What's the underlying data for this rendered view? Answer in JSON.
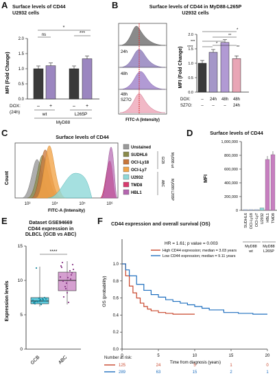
{
  "panels": {
    "A": {
      "letter": "A",
      "title_line1": "Surface levels of CD44",
      "title_line2": "U2932 cells",
      "ylabel": "MFI (Fold Change)",
      "yticks": [
        "0.0",
        "0.5",
        "1.0",
        "1.5",
        "2.0"
      ],
      "sig": [
        "ns",
        "*",
        "***"
      ],
      "dox_label": "DOX:",
      "dox_sub": "(24h)",
      "dox_values": [
        "–",
        "+",
        "–",
        "+"
      ],
      "group_labels": [
        "wt",
        "L265P"
      ],
      "group_super": "MyD88",
      "chart_data": {
        "type": "bar",
        "categories": [
          "wt DOX-",
          "wt DOX+",
          "L265P DOX-",
          "L265P DOX+"
        ],
        "values": [
          1.0,
          1.1,
          1.0,
          1.33
        ],
        "ylim": [
          0,
          2.0
        ],
        "colors": [
          "#3a3a3a",
          "#9b86c0",
          "#3a3a3a",
          "#9b86c0"
        ]
      }
    },
    "B": {
      "letter": "B",
      "title_line1": "Surface levels of CD44 in MyD88-L265P",
      "title_line2": "U2932 cells",
      "hist_labels": [
        "24h",
        "48h",
        "48h",
        "SZ7O"
      ],
      "hist_xlabel": "FITC-A (Intensity)",
      "ylabel": "MFI (Fold Change)",
      "yticks": [
        "0.0",
        "0.5",
        "1.0",
        "1.5",
        "2.0"
      ],
      "sig": [
        "****",
        "***",
        "**",
        "*",
        "*",
        "**"
      ],
      "dox_row_label": "DOX:",
      "sz_row_label": "SZ7O:",
      "dox_values": [
        "–",
        "24h",
        "48h",
        "48h"
      ],
      "sz_values": [
        "–",
        "–",
        "–",
        "24h"
      ],
      "chart_data": {
        "type": "bar",
        "categories": [
          "Ctrl",
          "DOX 24h",
          "DOX 48h",
          "DOX 48h + SZ7O 24h"
        ],
        "values": [
          1.0,
          1.38,
          1.72,
          1.16
        ],
        "ylim": [
          0,
          2.0
        ],
        "colors": [
          "#3a3a3a",
          "#a496c8",
          "#b19ad4",
          "#e9a6b6"
        ]
      }
    },
    "C": {
      "letter": "C",
      "title": "Surface levels of CD44",
      "ylabel": "Count",
      "xlabel": "FITC-A (Intensity)",
      "xticks": [
        "10³",
        "10⁴",
        "10⁵",
        "10⁶"
      ],
      "legend": [
        {
          "label": "Unstained",
          "color": "#9a9a9a"
        },
        {
          "label": "SUDHL6",
          "color": "#8a8a4a"
        },
        {
          "label": "OCI-Ly18",
          "color": "#c8763a"
        },
        {
          "label": "OCI-Ly7",
          "color": "#f2a54a"
        },
        {
          "label": "U2932",
          "color": "#8fd8d8"
        },
        {
          "label": "TMD8",
          "color": "#d83a6e"
        },
        {
          "label": "HBL1",
          "color": "#b565b0"
        }
      ],
      "group_gcb": "GCB",
      "group_abc": "ABC",
      "group_wt": "MyD88 wt",
      "group_mut": "MyD88 L265P"
    },
    "D": {
      "letter": "D",
      "title": "Surface levels of CD44",
      "ylabel": "MFI",
      "yticks": [
        "0",
        "200,000",
        "400,000",
        "600,000",
        "800,000",
        "1,000,000"
      ],
      "group_wt": "MyD88\nwt",
      "group_mut": "MyD88\nL265P",
      "chart_data": {
        "type": "bar",
        "categories": [
          "SUDHL6",
          "OCI-Ly18",
          "OCI-Ly7",
          "U2932",
          "HBL1",
          "TMD8"
        ],
        "values": [
          3000,
          3000,
          4000,
          35000,
          740000,
          810000
        ],
        "ylim": [
          0,
          1000000
        ],
        "colors": [
          "#a8c8ff",
          "#a8c8ff",
          "#a8c8ff",
          "#8fd8d8",
          "#c77fc0",
          "#c77fc0"
        ]
      }
    },
    "E": {
      "letter": "E",
      "title_line1": "Dataset GSE94669",
      "title_line2": "CD44 expression in",
      "title_line3": "DLBCL (GCB vs ABC)",
      "ylabel": "Expression levels",
      "yticks": [
        "0",
        "5",
        "10",
        "15"
      ],
      "sig": "****",
      "chart_data": {
        "type": "box",
        "categories": [
          "GCB",
          "ABC"
        ],
        "medians": [
          7.0,
          10.0
        ],
        "q1": [
          6.6,
          8.5
        ],
        "q3": [
          7.5,
          11.2
        ],
        "whisker_low": [
          6.2,
          6.5
        ],
        "whisker_high": [
          12.0,
          12.8
        ],
        "ylim": [
          0,
          15
        ],
        "colors": [
          "#2cb8d0",
          "#c77fc0"
        ]
      }
    },
    "F": {
      "letter": "F",
      "title": "CD44 expression and overall survival (OS)",
      "stat": "HR = 1.61; p value = 0.003",
      "legend_high": "High CD44 expression; median = 3.03 years",
      "legend_low": "Low CD44 expression; median = 9.11 years",
      "ylabel": "OS (probability)",
      "yticks": [
        "0.0",
        "0.2",
        "0.4",
        "0.6",
        "0.8",
        "1.0"
      ],
      "xticks": [
        "0",
        "5",
        "10",
        "15",
        "20"
      ],
      "xlabel": "Time from diagnosis (years)",
      "risk_title": "Number at risk:",
      "risk_high": [
        "125",
        "24",
        "5",
        "1",
        "0"
      ],
      "risk_low": [
        "289",
        "63",
        "15",
        "2",
        "1"
      ],
      "colors": {
        "high": "#c8452a",
        "low": "#1f6fbf"
      },
      "chart_data": {
        "type": "line",
        "xlim": [
          0,
          20
        ],
        "ylim": [
          0,
          1
        ],
        "series": [
          {
            "name": "High CD44 expression",
            "x": [
              0,
              0.5,
              1,
              1.5,
              2,
              2.5,
              3,
              3.5,
              4,
              5,
              6,
              7,
              8,
              9,
              10
            ],
            "y": [
              1.0,
              0.86,
              0.74,
              0.66,
              0.6,
              0.54,
              0.5,
              0.47,
              0.45,
              0.43,
              0.42,
              0.41,
              0.41,
              0.41,
              0.41
            ]
          },
          {
            "name": "Low CD44 expression",
            "x": [
              0,
              0.5,
              1,
              2,
              3,
              4,
              5,
              6,
              7,
              8,
              9,
              10,
              11,
              12,
              14,
              16,
              18,
              20
            ],
            "y": [
              1.0,
              0.93,
              0.86,
              0.76,
              0.69,
              0.64,
              0.61,
              0.58,
              0.56,
              0.54,
              0.52,
              0.5,
              0.48,
              0.46,
              0.43,
              0.42,
              0.41,
              0.41
            ]
          }
        ]
      }
    }
  }
}
